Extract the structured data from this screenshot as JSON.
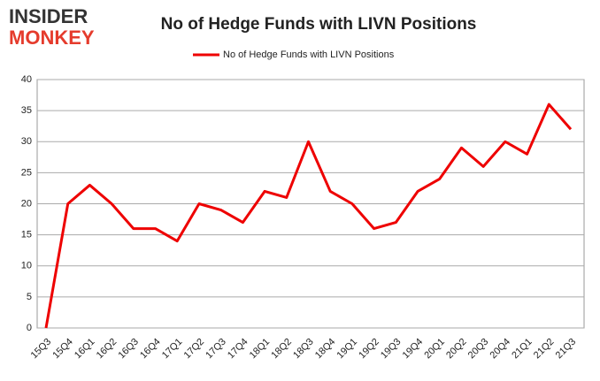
{
  "logo": [
    "INSIDER",
    "MONKEY"
  ],
  "chart_data": {
    "type": "line",
    "title": "No of Hedge Funds with LIVN Positions",
    "categories": [
      "15Q3",
      "15Q4",
      "16Q1",
      "16Q2",
      "16Q3",
      "16Q4",
      "17Q1",
      "17Q2",
      "17Q3",
      "17Q4",
      "18Q1",
      "18Q2",
      "18Q3",
      "18Q4",
      "19Q1",
      "19Q2",
      "19Q3",
      "19Q4",
      "20Q1",
      "20Q2",
      "20Q3",
      "20Q4",
      "21Q1",
      "21Q2",
      "21Q3"
    ],
    "series": [
      {
        "name": "No of Hedge Funds with LIVN Positions",
        "color": "#ee0000",
        "values": [
          0,
          20,
          23,
          20,
          16,
          16,
          14,
          20,
          19,
          17,
          22,
          21,
          30,
          22,
          20,
          16,
          17,
          22,
          24,
          29,
          26,
          30,
          28,
          36,
          32
        ]
      }
    ],
    "ylim": [
      0,
      40
    ],
    "yticks": [
      0,
      5,
      10,
      15,
      20,
      25,
      30,
      35,
      40
    ],
    "grid": true,
    "legend": "top"
  }
}
